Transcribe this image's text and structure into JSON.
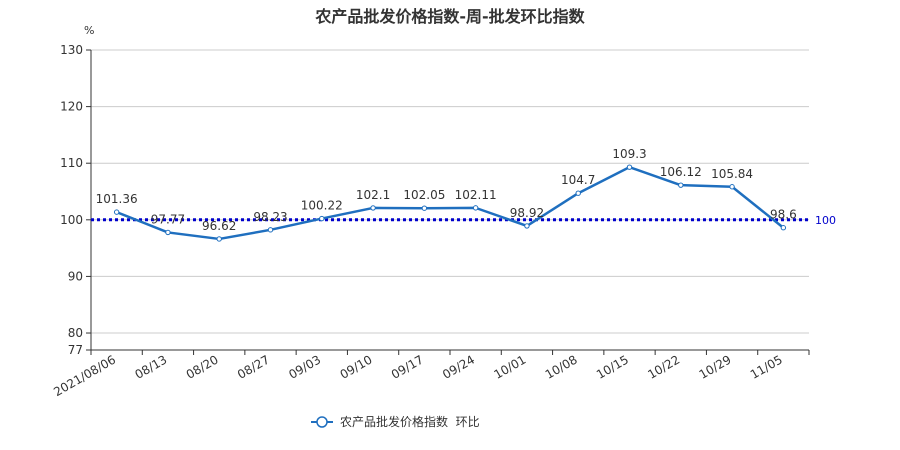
{
  "chart_data": {
    "type": "line",
    "title": "农产品批发价格指数-周-批发环比指数",
    "y_unit": "%",
    "categories": [
      "2021/08/06",
      "08/13",
      "08/20",
      "08/27",
      "09/03",
      "09/10",
      "09/17",
      "09/24",
      "10/01",
      "10/08",
      "10/15",
      "10/22",
      "10/29",
      "11/05"
    ],
    "series": [
      {
        "name": "农产品批发价格指数  环比",
        "color": "#1f6fbf",
        "values": [
          101.36,
          97.77,
          96.62,
          98.23,
          100.22,
          102.1,
          102.05,
          102.11,
          98.92,
          104.7,
          109.3,
          106.12,
          105.84,
          98.6
        ]
      }
    ],
    "ylim": [
      77,
      130
    ],
    "yticks": [
      77,
      80,
      90,
      100,
      110,
      120,
      130
    ],
    "reference_line": {
      "value": 100,
      "label": "100",
      "color": "#0000cc"
    },
    "grid": true,
    "legend": "bottom-center"
  }
}
